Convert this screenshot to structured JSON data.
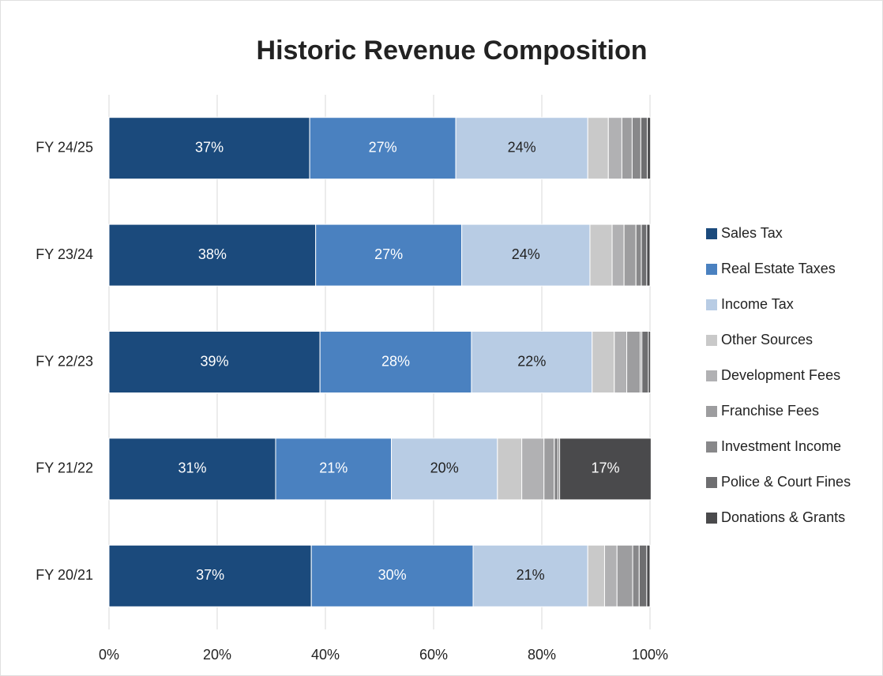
{
  "chart_data": {
    "type": "stacked-bar-horizontal",
    "title": "Historic Revenue Composition",
    "categories": [
      "FY 24/25",
      "FY 23/24",
      "FY 22/23",
      "FY 21/22",
      "FY 20/21"
    ],
    "series": [
      {
        "name": "Sales Tax",
        "color": "#1b4a7c",
        "values": [
          37.1,
          38.2,
          39.0,
          30.8,
          37.4
        ],
        "value_labels": [
          "37%",
          "38%",
          "39%",
          "31%",
          "37%"
        ]
      },
      {
        "name": "Real Estate Taxes",
        "color": "#4a81c0",
        "values": [
          27.0,
          27.0,
          28.0,
          21.4,
          29.9
        ],
        "value_labels": [
          "27%",
          "27%",
          "28%",
          "21%",
          "30%"
        ]
      },
      {
        "name": "Income Tax",
        "color": "#b8cce4",
        "values": [
          24.4,
          23.7,
          22.3,
          19.6,
          21.2
        ],
        "value_labels": [
          "24%",
          "24%",
          "22%",
          "20%",
          "21%"
        ]
      },
      {
        "name": "Other Sources",
        "color": "#c9c9c9",
        "values": [
          3.8,
          4.1,
          4.1,
          4.5,
          3.1
        ]
      },
      {
        "name": "Development Fees",
        "color": "#b1b1b3",
        "values": [
          2.5,
          2.2,
          2.3,
          4.1,
          2.3
        ]
      },
      {
        "name": "Franchise Fees",
        "color": "#9d9d9f",
        "values": [
          1.9,
          2.2,
          2.5,
          1.9,
          2.9
        ]
      },
      {
        "name": "Investment Income",
        "color": "#88888a",
        "values": [
          1.6,
          1.0,
          0.3,
          0.7,
          1.2
        ]
      },
      {
        "name": "Police & Court Fines",
        "color": "#6e6e70",
        "values": [
          1.2,
          1.0,
          1.2,
          0.3,
          1.4
        ]
      },
      {
        "name": "Donations & Grants",
        "color": "#4a4a4c",
        "values": [
          0.6,
          0.6,
          0.4,
          16.9,
          0.6
        ],
        "value_labels": [
          null,
          null,
          null,
          "17%",
          null
        ]
      }
    ],
    "xlim": [
      0,
      100
    ],
    "xticks": [
      {
        "value": 0,
        "label": "0%"
      },
      {
        "value": 20,
        "label": "20%"
      },
      {
        "value": 40,
        "label": "40%"
      },
      {
        "value": 60,
        "label": "60%"
      },
      {
        "value": 80,
        "label": "80%"
      },
      {
        "value": 100,
        "label": "100%"
      }
    ],
    "grid": true,
    "legend": "right"
  }
}
